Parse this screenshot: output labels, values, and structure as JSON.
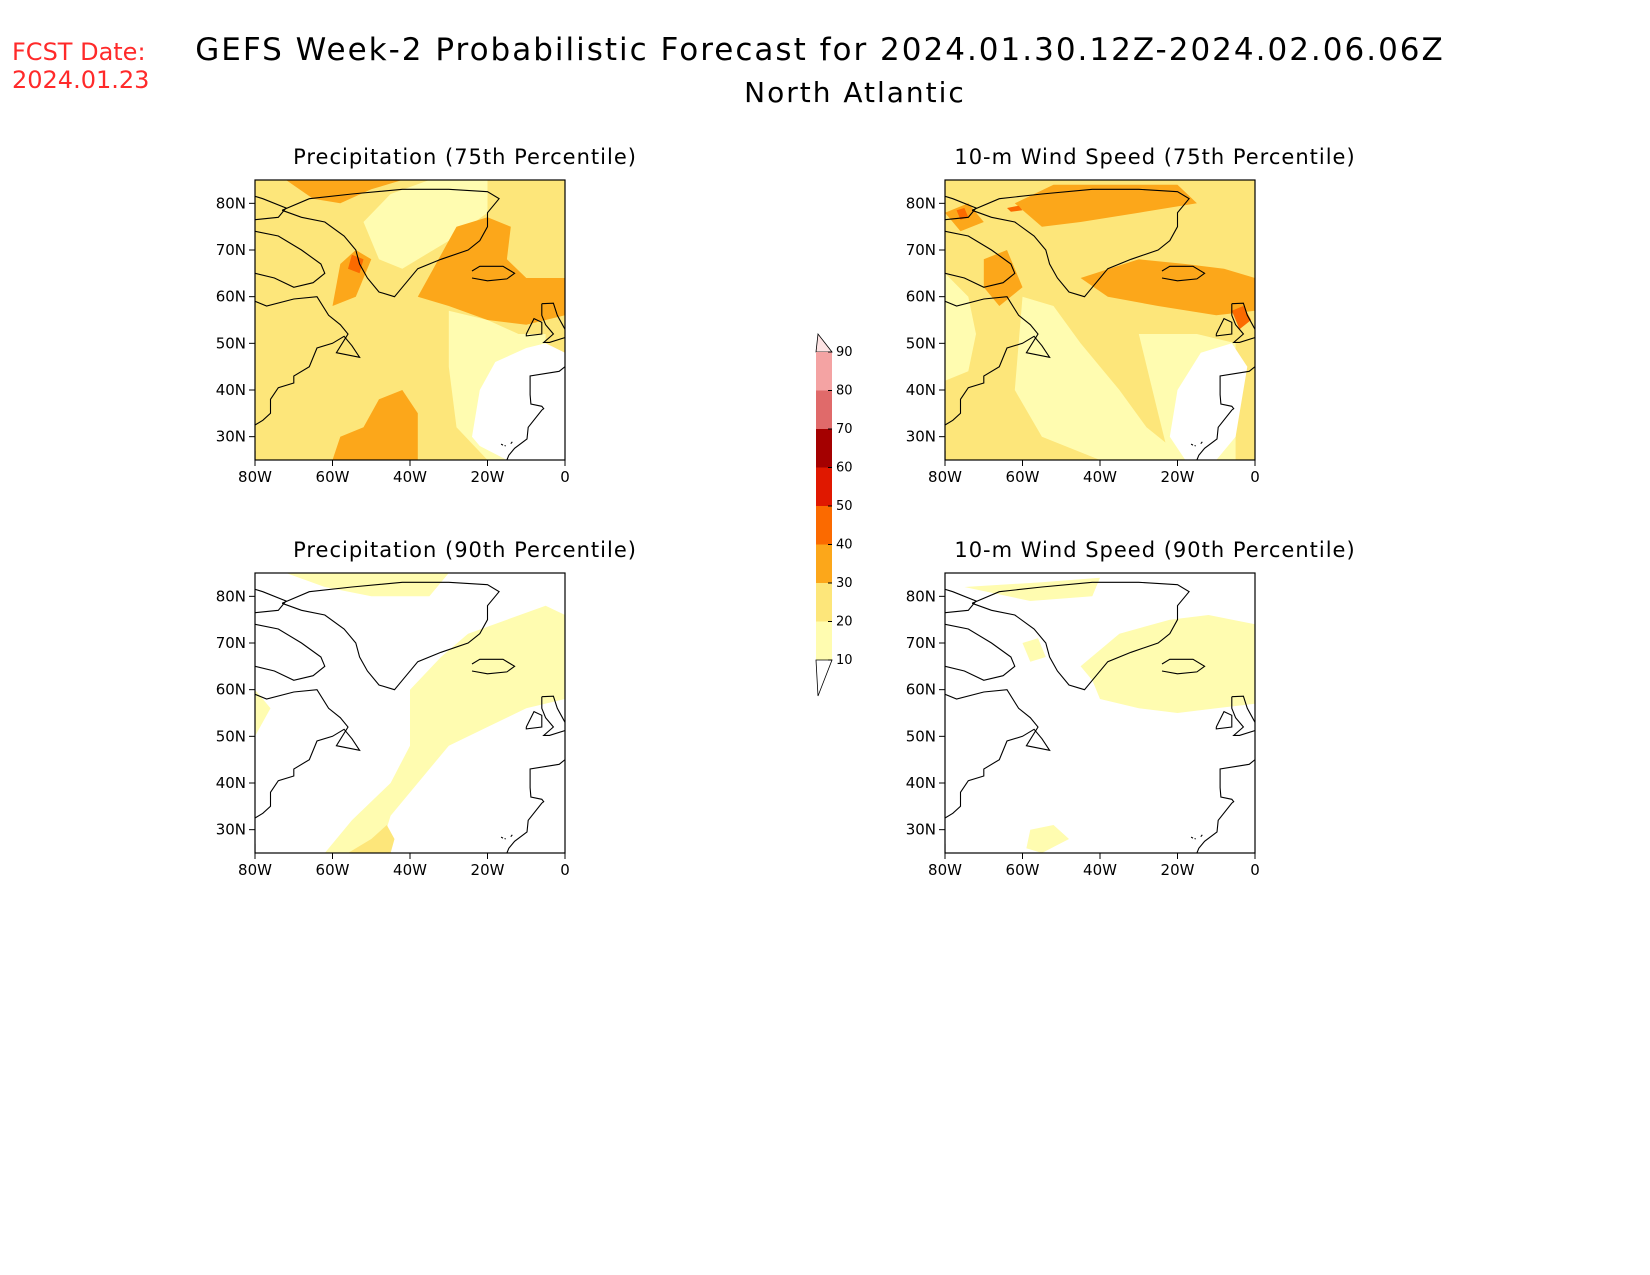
{
  "forecast": {
    "label_line1": "FCST Date:",
    "label_line2": "2024.01.23"
  },
  "header": {
    "title": "GEFS Week-2 Probabilistic Forecast for 2024.01.30.12Z-2024.02.06.06Z",
    "subtitle": "North Atlantic"
  },
  "panels": [
    {
      "id": "precip75",
      "title": "Precipitation (75th Percentile)",
      "variant": "precip-75"
    },
    {
      "id": "wind75",
      "title": "10-m Wind Speed (75th Percentile)",
      "variant": "wind-75"
    },
    {
      "id": "precip90",
      "title": "Precipitation (90th Percentile)",
      "variant": "precip-90"
    },
    {
      "id": "wind90",
      "title": "10-m Wind Speed (90th Percentile)",
      "variant": "wind-90"
    }
  ],
  "axes": {
    "lon_ticks": [
      "80W",
      "60W",
      "40W",
      "20W",
      "0"
    ],
    "lat_ticks": [
      "80N",
      "70N",
      "60N",
      "50N",
      "40N",
      "30N"
    ]
  },
  "colorbar": {
    "levels": [
      "10",
      "20",
      "30",
      "40",
      "50",
      "60",
      "70",
      "80",
      "90"
    ],
    "colors": [
      "#fffcb0",
      "#fde67a",
      "#fca71a",
      "#fb6a00",
      "#e01800",
      "#a40000",
      "#e06a6a",
      "#f4a3a3",
      "#fde3e3"
    ]
  }
}
